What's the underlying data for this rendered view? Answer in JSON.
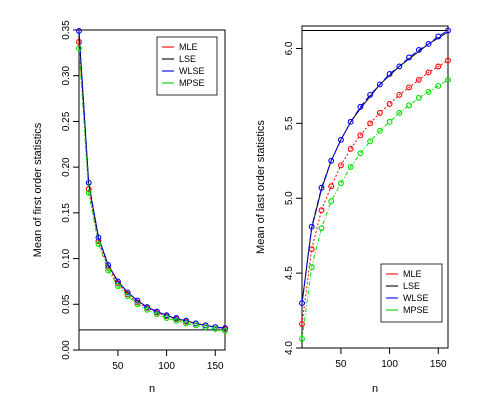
{
  "chart_data": [
    {
      "type": "line",
      "xlabel": "n",
      "ylabel": "Mean of first order statistics",
      "xlim": [
        10,
        160
      ],
      "ylim": [
        0.0,
        0.35
      ],
      "x_ticks": [
        50,
        100,
        150
      ],
      "y_ticks": [
        0.0,
        0.05,
        0.1,
        0.15,
        0.2,
        0.25,
        0.3,
        0.35
      ],
      "y_tick_labels": [
        "0.00",
        "0.05",
        "0.10",
        "0.15",
        "0.20",
        "0.25",
        "0.30",
        "0.35"
      ],
      "reference_line": 0.022,
      "legend_position": "top-right",
      "x": [
        10,
        20,
        30,
        40,
        50,
        60,
        70,
        80,
        90,
        100,
        110,
        120,
        130,
        140,
        150,
        160
      ],
      "series": [
        {
          "name": "MLE",
          "color": "#ff0000",
          "values": [
            0.337,
            0.176,
            0.119,
            0.09,
            0.073,
            0.061,
            0.052,
            0.046,
            0.041,
            0.037,
            0.034,
            0.031,
            0.029,
            0.027,
            0.025,
            0.023
          ]
        },
        {
          "name": "LSE",
          "color": "#000000",
          "values": [
            0.348,
            0.182,
            0.123,
            0.093,
            0.075,
            0.063,
            0.054,
            0.047,
            0.042,
            0.038,
            0.034,
            0.032,
            0.029,
            0.027,
            0.025,
            0.024
          ]
        },
        {
          "name": "WLSE",
          "color": "#0000ff",
          "values": [
            0.349,
            0.183,
            0.123,
            0.093,
            0.075,
            0.063,
            0.054,
            0.047,
            0.042,
            0.038,
            0.035,
            0.032,
            0.029,
            0.027,
            0.025,
            0.024
          ]
        },
        {
          "name": "MPSE",
          "color": "#00dd00",
          "values": [
            0.33,
            0.172,
            0.116,
            0.087,
            0.07,
            0.059,
            0.05,
            0.044,
            0.039,
            0.035,
            0.032,
            0.029,
            0.027,
            0.025,
            0.023,
            0.021
          ]
        }
      ]
    },
    {
      "type": "line",
      "xlabel": "n",
      "ylabel": "Mean of last order statistics",
      "xlim": [
        10,
        160
      ],
      "ylim": [
        4.0,
        6.15
      ],
      "x_ticks": [
        50,
        100,
        150
      ],
      "y_ticks": [
        4.0,
        4.5,
        5.0,
        5.5,
        6.0
      ],
      "y_tick_labels": [
        "4.0",
        "4.5",
        "5.0",
        "5.5",
        "6.0"
      ],
      "reference_line": 6.12,
      "legend_position": "bottom-right",
      "x": [
        10,
        20,
        30,
        40,
        50,
        60,
        70,
        80,
        90,
        100,
        110,
        120,
        130,
        140,
        150,
        160
      ],
      "series": [
        {
          "name": "MLE",
          "color": "#ff0000",
          "values": [
            4.16,
            4.66,
            4.92,
            5.08,
            5.22,
            5.33,
            5.42,
            5.5,
            5.57,
            5.63,
            5.69,
            5.74,
            5.79,
            5.84,
            5.88,
            5.92
          ]
        },
        {
          "name": "LSE",
          "color": "#000000",
          "values": [
            4.3,
            4.8,
            5.06,
            5.25,
            5.39,
            5.51,
            5.6,
            5.68,
            5.76,
            5.82,
            5.88,
            5.93,
            5.98,
            6.03,
            6.07,
            6.11
          ]
        },
        {
          "name": "WLSE",
          "color": "#0000ff",
          "values": [
            4.3,
            4.81,
            5.07,
            5.25,
            5.39,
            5.51,
            5.61,
            5.69,
            5.76,
            5.83,
            5.88,
            5.94,
            5.99,
            6.03,
            6.08,
            6.12
          ]
        },
        {
          "name": "MPSE",
          "color": "#00dd00",
          "values": [
            4.06,
            4.54,
            4.8,
            4.98,
            5.1,
            5.21,
            5.3,
            5.38,
            5.45,
            5.51,
            5.57,
            5.62,
            5.67,
            5.71,
            5.75,
            5.79
          ]
        }
      ]
    }
  ]
}
